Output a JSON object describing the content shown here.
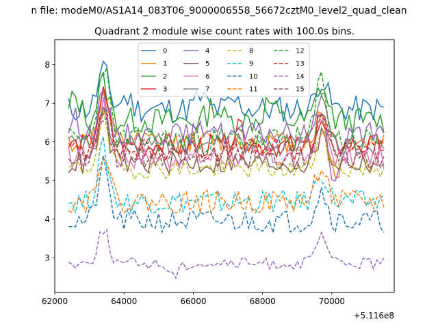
{
  "chart_data": {
    "type": "line",
    "suptitle": "n file: modeM0/AS1A14_083T06_9000006558_56672cztM0_level2_quad_clean",
    "title": "Quadrant 2 module wise count rates with 100.0s bins.",
    "xlabel": "",
    "ylabel": "",
    "x_offset_label": "+5.116e8",
    "grid": false,
    "legend_position": "top-center",
    "xlim": [
      62000,
      71800
    ],
    "ylim": [
      2.1,
      8.65
    ],
    "xticks": [
      62000,
      64000,
      66000,
      68000,
      70000
    ],
    "xtick_labels": [
      "62000",
      "64000",
      "66000",
      "68000",
      "70000"
    ],
    "yticks": [
      3,
      4,
      5,
      6,
      7,
      8
    ],
    "ytick_labels": [
      "3",
      "4",
      "5",
      "6",
      "7",
      "8"
    ],
    "x_start": 62400,
    "x_step": 100,
    "n_points": 92,
    "series": [
      {
        "name": "0",
        "color": "#1f77b4",
        "dash": "solid",
        "level": 6.85,
        "noise": 0.35,
        "seed": 11,
        "features": [
          [
            63400,
            1.0
          ],
          [
            64050,
            0.3
          ],
          [
            66200,
            0.3
          ],
          [
            67200,
            0.2
          ],
          [
            69700,
            0.8
          ]
        ]
      },
      {
        "name": "1",
        "color": "#ff7f0e",
        "dash": "solid",
        "level": 6.0,
        "noise": 0.3,
        "seed": 12,
        "features": [
          [
            63400,
            1.2
          ],
          [
            69700,
            0.7
          ],
          [
            70100,
            -0.9
          ]
        ]
      },
      {
        "name": "2",
        "color": "#2ca02c",
        "dash": "solid",
        "level": 6.55,
        "noise": 0.35,
        "seed": 13,
        "features": [
          [
            62600,
            0.6
          ],
          [
            63400,
            1.0
          ],
          [
            66600,
            0.4
          ],
          [
            68200,
            0.5
          ],
          [
            69700,
            0.9
          ]
        ]
      },
      {
        "name": "3",
        "color": "#d62728",
        "dash": "solid",
        "level": 5.9,
        "noise": 0.3,
        "seed": 14,
        "features": [
          [
            63400,
            1.3
          ],
          [
            67300,
            0.4
          ],
          [
            69700,
            0.5
          ]
        ]
      },
      {
        "name": "4",
        "color": "#9467bd",
        "dash": "solid",
        "level": 6.2,
        "noise": 0.3,
        "seed": 15,
        "features": [
          [
            62600,
            0.4
          ],
          [
            63400,
            0.9
          ],
          [
            66500,
            0.3
          ],
          [
            69700,
            0.7
          ],
          [
            70100,
            -1.3
          ]
        ]
      },
      {
        "name": "5",
        "color": "#8c564b",
        "dash": "solid",
        "level": 5.45,
        "noise": 0.3,
        "seed": 16,
        "features": [
          [
            63400,
            1.2
          ],
          [
            69700,
            0.7
          ]
        ]
      },
      {
        "name": "6",
        "color": "#e377c2",
        "dash": "solid",
        "level": 5.6,
        "noise": 0.3,
        "seed": 17,
        "features": [
          [
            63400,
            1.3
          ],
          [
            69700,
            1.0
          ]
        ]
      },
      {
        "name": "7",
        "color": "#7f7f7f",
        "dash": "solid",
        "level": 5.95,
        "noise": 0.28,
        "seed": 18,
        "features": [
          [
            63400,
            0.7
          ],
          [
            69700,
            1.0
          ]
        ]
      },
      {
        "name": "8",
        "color": "#bcbd22",
        "dash": "dashed",
        "level": 5.3,
        "noise": 0.25,
        "seed": 19,
        "features": [
          [
            63400,
            1.3
          ],
          [
            69700,
            0.9
          ]
        ]
      },
      {
        "name": "9",
        "color": "#17becf",
        "dash": "dashed",
        "level": 4.45,
        "noise": 0.3,
        "seed": 20,
        "features": [
          [
            63400,
            1.4
          ],
          [
            69700,
            0.8
          ]
        ]
      },
      {
        "name": "10",
        "color": "#1f77b4",
        "dash": "dashed",
        "level": 3.95,
        "noise": 0.3,
        "seed": 21,
        "features": [
          [
            63400,
            1.4
          ],
          [
            69700,
            0.8
          ]
        ]
      },
      {
        "name": "11",
        "color": "#ff7f0e",
        "dash": "dashed",
        "level": 4.45,
        "noise": 0.3,
        "seed": 22,
        "features": [
          [
            63400,
            1.4
          ],
          [
            69700,
            1.0
          ]
        ]
      },
      {
        "name": "12",
        "color": "#2ca02c",
        "dash": "dashed",
        "level": 6.05,
        "noise": 0.35,
        "seed": 23,
        "features": [
          [
            63400,
            2.0
          ],
          [
            69700,
            1.6
          ]
        ]
      },
      {
        "name": "13",
        "color": "#d62728",
        "dash": "dashed",
        "level": 5.8,
        "noise": 0.3,
        "seed": 24,
        "features": [
          [
            63400,
            1.2
          ],
          [
            69700,
            1.0
          ]
        ]
      },
      {
        "name": "14",
        "color": "#9467bd",
        "dash": "dashed",
        "level": 2.85,
        "noise": 0.15,
        "seed": 25,
        "features": [
          [
            63400,
            0.9
          ],
          [
            69700,
            0.7
          ],
          [
            65450,
            -0.3
          ]
        ]
      },
      {
        "name": "15",
        "color": "#8c564b",
        "dash": "dashed",
        "level": 5.6,
        "noise": 0.3,
        "seed": 26,
        "features": [
          [
            63400,
            1.2
          ],
          [
            69700,
            1.2
          ]
        ]
      }
    ]
  }
}
